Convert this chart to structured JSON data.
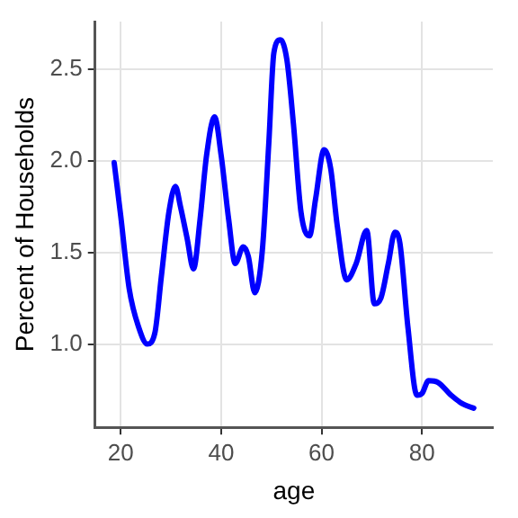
{
  "chart_data": {
    "type": "line",
    "xlabel": "age",
    "ylabel": "Percent of Households",
    "x": [
      18.7,
      20,
      21.7,
      23.6,
      25.3,
      26.8,
      28.1,
      29.6,
      30.9,
      31.9,
      33.2,
      34.5,
      35.8,
      37.1,
      38.7,
      40,
      41.5,
      42.8,
      44.4,
      45.4,
      46.7,
      48.2,
      49.5,
      50.5,
      51.8,
      53.1,
      54.4,
      55.9,
      57.6,
      58.8,
      60.5,
      61.8,
      63.1,
      65,
      66.9,
      69,
      70.5,
      71.8,
      73.3,
      74.6,
      75.6,
      77.2,
      79,
      80,
      81.3,
      83.2,
      85.8,
      88.3,
      90.3
    ],
    "series": [
      {
        "color": "#0000ff",
        "values": [
          1.99,
          1.7,
          1.3,
          1.09,
          1.0,
          1.06,
          1.37,
          1.72,
          1.86,
          1.75,
          1.58,
          1.41,
          1.68,
          2.03,
          2.24,
          2.03,
          1.68,
          1.44,
          1.53,
          1.48,
          1.28,
          1.51,
          2.1,
          2.59,
          2.66,
          2.55,
          2.2,
          1.72,
          1.59,
          1.79,
          2.06,
          1.96,
          1.65,
          1.35,
          1.44,
          1.62,
          1.22,
          1.25,
          1.44,
          1.61,
          1.55,
          1.09,
          0.72,
          0.73,
          0.8,
          0.79,
          0.72,
          0.67,
          0.65
        ]
      }
    ],
    "xlim": [
      14.9,
      94.1
    ],
    "xticks": [
      20,
      40,
      60,
      80
    ],
    "ylim": [
      0.545,
      2.76
    ],
    "yticks": [
      {
        "value": 1,
        "label": "1.0"
      },
      {
        "value": 1.5,
        "label": "1.5"
      },
      {
        "value": 2,
        "label": "2.0"
      },
      {
        "value": 2.5,
        "label": "2.5"
      }
    ],
    "grid": true,
    "legend": false,
    "marker": "none",
    "line_style": "solid"
  }
}
